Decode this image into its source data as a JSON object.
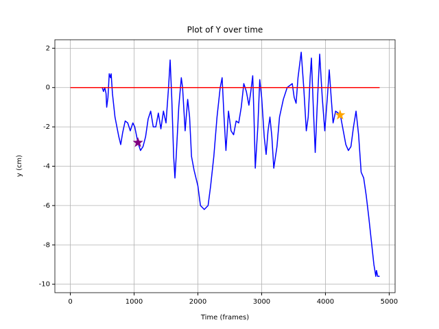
{
  "chart_data": {
    "type": "line",
    "title": "Plot of Y over time",
    "xlabel": "Time (frames)",
    "ylabel": "y (cm)",
    "xlim": [
      -242.5,
      5092.5
    ],
    "ylim": [
      -10.43,
      2.43
    ],
    "xticks": [
      0,
      1000,
      2000,
      3000,
      4000,
      5000
    ],
    "yticks": [
      -10,
      -8,
      -6,
      -4,
      -2,
      0,
      2
    ],
    "grid": true,
    "series": [
      {
        "color": "#0000ff",
        "x": [
          0,
          500,
          520,
          540,
          560,
          570,
          590,
          610,
          630,
          640,
          660,
          700,
          760,
          790,
          820,
          860,
          900,
          940,
          980,
          1010,
          1060,
          1100,
          1140,
          1180,
          1220,
          1260,
          1300,
          1340,
          1380,
          1420,
          1460,
          1500,
          1540,
          1565,
          1590,
          1620,
          1640,
          1660,
          1700,
          1740,
          1760,
          1800,
          1840,
          1870,
          1900,
          1940,
          2000,
          2040,
          2100,
          2160,
          2200,
          2250,
          2300,
          2350,
          2380,
          2410,
          2440,
          2480,
          2520,
          2560,
          2600,
          2640,
          2680,
          2720,
          2760,
          2800,
          2830,
          2860,
          2880,
          2900,
          2940,
          2970,
          3000,
          3040,
          3070,
          3100,
          3130,
          3160,
          3190,
          3240,
          3280,
          3340,
          3400,
          3440,
          3480,
          3510,
          3540,
          3570,
          3620,
          3660,
          3700,
          3730,
          3760,
          3780,
          3810,
          3840,
          3870,
          3910,
          3950,
          3990,
          4030,
          4060,
          4090,
          4120,
          4160,
          4200,
          4240,
          4280,
          4320,
          4360,
          4400,
          4440,
          4480,
          4520,
          4560,
          4600,
          4640,
          4680,
          4720,
          4760,
          4790,
          4800,
          4820,
          4850
        ],
        "values": [
          0,
          0,
          -0.2,
          0,
          -0.3,
          -1.0,
          -0.5,
          0.7,
          0.5,
          0.7,
          -0.3,
          -1.5,
          -2.5,
          -2.9,
          -2.3,
          -1.7,
          -1.8,
          -2.2,
          -1.8,
          -2.0,
          -2.8,
          -3.2,
          -3.0,
          -2.5,
          -1.6,
          -1.2,
          -2.0,
          -2.0,
          -1.3,
          -2.1,
          -1.2,
          -1.8,
          0,
          1.4,
          -0.5,
          -3.5,
          -4.6,
          -3.5,
          -1.0,
          0.5,
          0,
          -2.2,
          -0.6,
          -1.5,
          -3.5,
          -4.2,
          -5.0,
          -6.0,
          -6.2,
          -6.0,
          -5.0,
          -3.5,
          -1.5,
          0,
          0.5,
          -1.5,
          -3.2,
          -1.2,
          -2.2,
          -2.4,
          -1.7,
          -1.8,
          -1.0,
          0.2,
          -0.2,
          -0.9,
          -0.2,
          0.6,
          -1.5,
          -4.1,
          -2.0,
          0.4,
          -0.5,
          -2.5,
          -3.4,
          -2.2,
          -1.5,
          -2.5,
          -4.1,
          -3.0,
          -1.5,
          -0.6,
          0,
          0.1,
          0.2,
          -0.5,
          -0.8,
          0.5,
          1.8,
          0,
          -2.2,
          -1.5,
          0.5,
          1.5,
          -1.0,
          -3.3,
          -1.0,
          1.7,
          -0.5,
          -2.2,
          -0.5,
          0.9,
          -0.5,
          -1.8,
          -1.2,
          -1.3,
          -1.5,
          -2.2,
          -2.9,
          -3.2,
          -3.0,
          -2.0,
          -1.2,
          -2.4,
          -4.3,
          -4.6,
          -5.5,
          -6.6,
          -7.8,
          -9.0,
          -9.6,
          -9.3,
          -9.6,
          -9.6
        ]
      },
      {
        "color": "#ff0000",
        "x": [
          0,
          4850
        ],
        "values": [
          0,
          0
        ]
      }
    ],
    "markers": [
      {
        "color": "#800080",
        "x": 1060,
        "y": -2.8
      },
      {
        "color": "#ffa500",
        "x": 4230,
        "y": -1.4
      }
    ]
  }
}
